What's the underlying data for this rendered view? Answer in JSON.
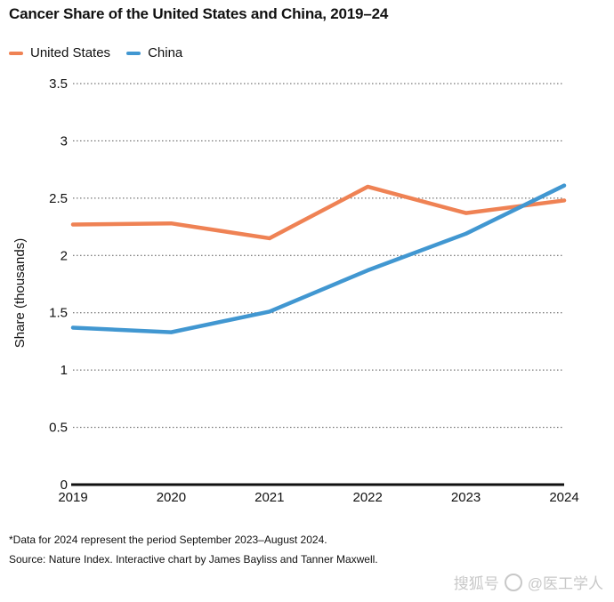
{
  "chart_data": {
    "type": "line",
    "title": "Cancer Share of the United States and China, 2019–24",
    "xlabel": "",
    "ylabel": "Share (thousands)",
    "x": [
      2019,
      2020,
      2021,
      2022,
      2023,
      2024
    ],
    "x_tick_labels": [
      "2019",
      "2020",
      "2021",
      "2022",
      "2023",
      "2024"
    ],
    "y_tick_labels": [
      "0",
      "0.5",
      "1",
      "1.5",
      "2",
      "2.5",
      "3",
      "3.5"
    ],
    "y_ticks": [
      0,
      0.5,
      1,
      1.5,
      2,
      2.5,
      3,
      3.5
    ],
    "ylim": [
      0,
      3.5
    ],
    "grid": "horizontal dotted",
    "legend_position": "top-left",
    "series": [
      {
        "name": "United States",
        "color": "#ef8254",
        "values": [
          2.27,
          2.28,
          2.15,
          2.6,
          2.37,
          2.48
        ]
      },
      {
        "name": "China",
        "color": "#4197d1",
        "values": [
          1.37,
          1.33,
          1.51,
          1.87,
          2.19,
          2.61
        ]
      }
    ]
  },
  "footnote": "*Data for 2024 represent the period September 2023–August 2024.",
  "source": "Source: Nature Index. Interactive chart by James Bayliss and Tanner Maxwell.",
  "watermark": {
    "text": "@医工学人",
    "prefix": "搜狐号"
  }
}
